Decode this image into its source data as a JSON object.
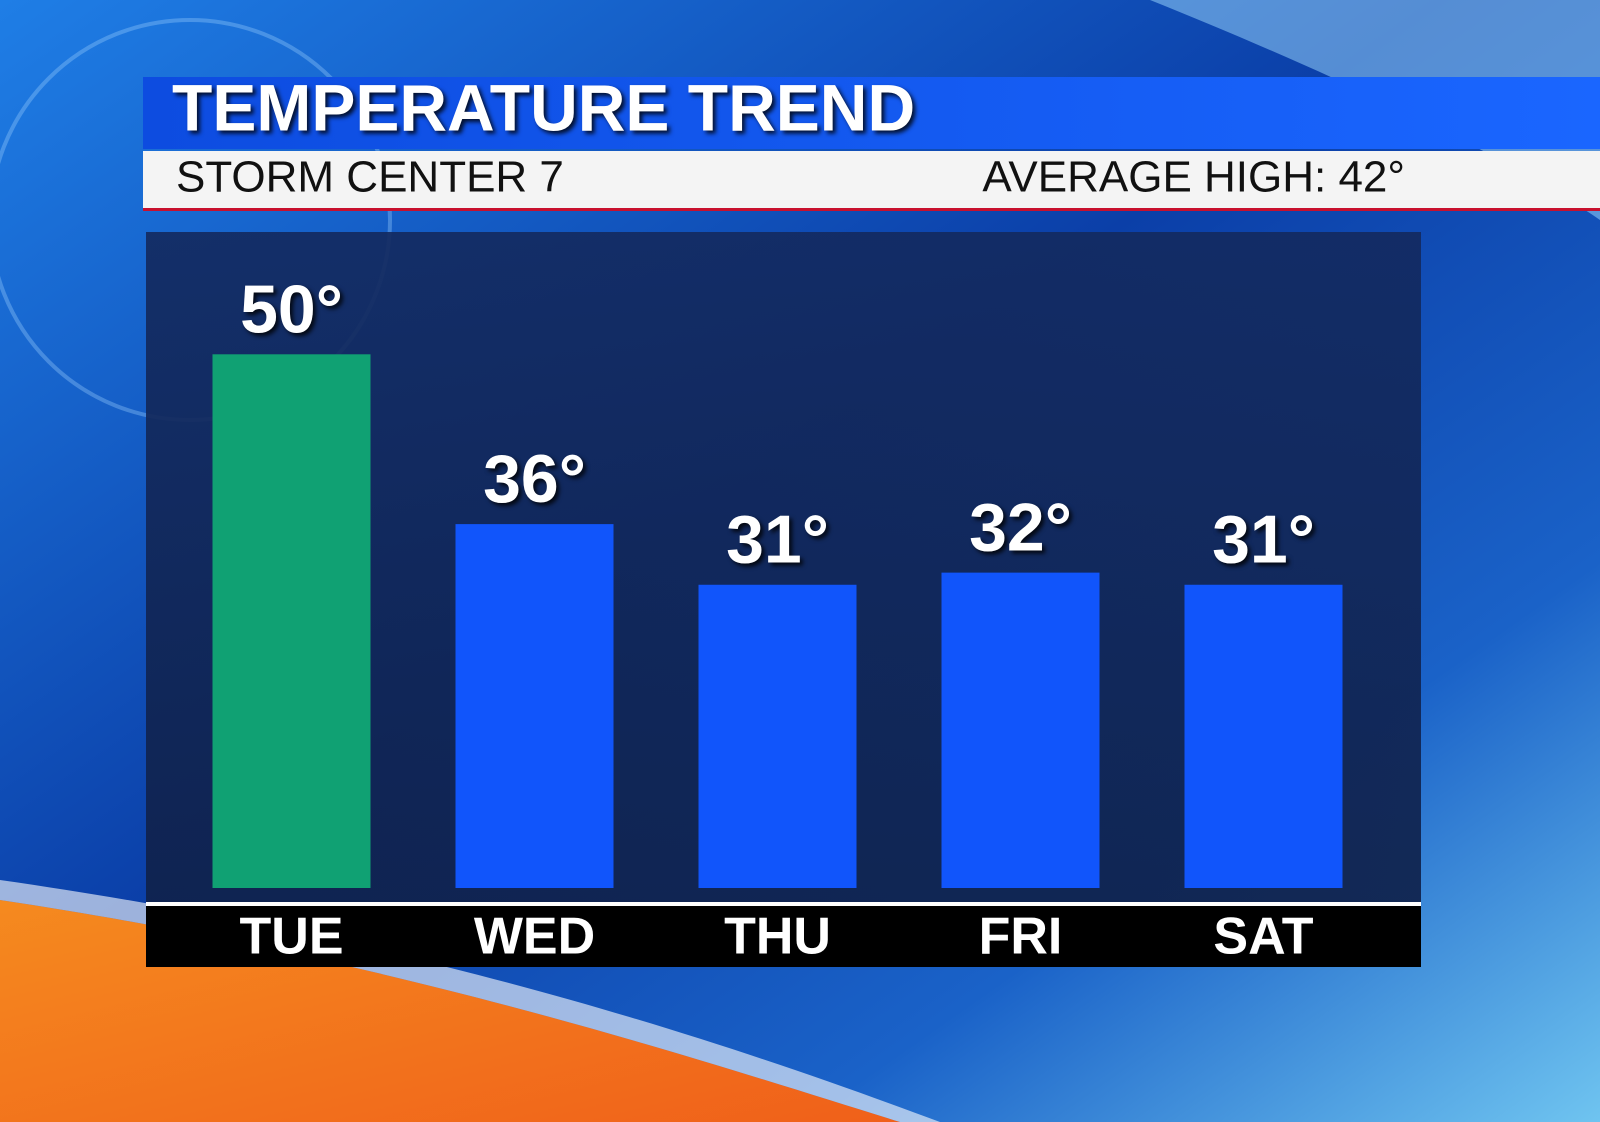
{
  "chart_data": {
    "type": "bar",
    "title": "TEMPERATURE TREND",
    "subtitle": "STORM CENTER 7",
    "annotation": "AVERAGE HIGH: 42°",
    "categories": [
      "TUE",
      "WED",
      "THU",
      "FRI",
      "SAT"
    ],
    "values": [
      50,
      36,
      31,
      32,
      31
    ],
    "value_labels": [
      "50°",
      "36°",
      "31°",
      "32°",
      "31°"
    ],
    "colors": [
      "#10a173",
      "#1155fb",
      "#1155fb",
      "#1155fb",
      "#1155fb"
    ],
    "ylim": [
      6,
      60
    ]
  }
}
